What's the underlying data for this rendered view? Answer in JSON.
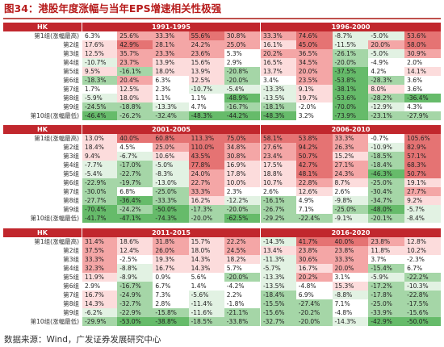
{
  "title": "图34：港股年度涨幅与当年EPS增速相关性极强",
  "source": "数据来源：Wind，广发证券发展研究中心",
  "colors": {
    "header_red": "#c1272d",
    "title_red": "#b71c1c",
    "pos_strong": "#e57373",
    "pos_mid": "#f4a6a6",
    "pos_light": "#fcdcdc",
    "neg_strong": "#66bb6a",
    "neg_mid": "#a5d6a7",
    "neg_light": "#e2f2e3",
    "neutral": "#ffffff"
  },
  "panels": [
    {
      "label": "HK",
      "periods": [
        "1991-1995",
        "1996-2000"
      ],
      "rows": [
        {
          "group": "第1组(涨幅最高)",
          "values": [
            "6.3%",
            "25.6%",
            "33.3%",
            "55.6%",
            "30.8%",
            "33.3%",
            "74.6%",
            "-8.7%",
            "-5.0%",
            "53.6%"
          ]
        },
        {
          "group": "第2组",
          "values": [
            "17.6%",
            "42.9%",
            "28.1%",
            "24.2%",
            "25.0%",
            "16.1%",
            "45.0%",
            "-11.5%",
            "20.0%",
            "58.0%"
          ]
        },
        {
          "group": "第3组",
          "values": [
            "12.5%",
            "35.7%",
            "23.3%",
            "23.6%",
            "5.3%",
            "20.2%",
            "36.5%",
            "-26.1%",
            "-5.0%",
            "30.9%"
          ]
        },
        {
          "group": "第4组",
          "values": [
            "-10.7%",
            "23.7%",
            "13.9%",
            "15.6%",
            "2.9%",
            "16.5%",
            "34.5%",
            "-20.0%",
            "-4.9%",
            "2.0%"
          ]
        },
        {
          "group": "第5组",
          "values": [
            "9.5%",
            "-16.1%",
            "18.0%",
            "13.9%",
            "-20.8%",
            "13.7%",
            "20.0%",
            "-37.5%",
            "4.2%",
            "14.1%"
          ]
        },
        {
          "group": "第6组",
          "values": [
            "-18.3%",
            "20.4%",
            "6.3%",
            "12.5%",
            "-20.0%",
            "3.4%",
            "23.5%",
            "-53.8%",
            "-28.3%",
            "3.6%"
          ]
        },
        {
          "group": "第7组",
          "values": [
            "1.7%",
            "12.5%",
            "2.3%",
            "-10.7%",
            "-5.4%",
            "-13.3%",
            "9.1%",
            "-38.1%",
            "8.0%",
            "3.6%"
          ]
        },
        {
          "group": "第8组",
          "values": [
            "-5.9%",
            "18.0%",
            "1.1%",
            "1.1%",
            "-48.9%",
            "-13.5%",
            "19.7%",
            "-53.6%",
            "-28.2%",
            "-36.4%"
          ]
        },
        {
          "group": "第9组",
          "values": [
            "-24.5%",
            "-18.8%",
            "-13.3%",
            "4.7%",
            "-16.7%",
            "-18.1%",
            "-2.0%",
            "-70.0%",
            "-12.9%",
            "4.3%"
          ]
        },
        {
          "group": "第10组(涨幅最低)",
          "values": [
            "-46.4%",
            "-26.2%",
            "-32.4%",
            "-48.3%",
            "-44.2%",
            "-48.3%",
            "3.2%",
            "-73.9%",
            "-23.1%",
            "-27.9%"
          ]
        }
      ]
    },
    {
      "label": "HK",
      "periods": [
        "2001-2005",
        "2006-2010"
      ],
      "rows": [
        {
          "group": "第1组(涨幅最高)",
          "values": [
            "13.0%",
            "40.0%",
            "60.8%",
            "113.3%",
            "75.0%",
            "58.1%",
            "53.8%",
            "33.3%",
            "-0.7%",
            "105.6%"
          ]
        },
        {
          "group": "第2组",
          "values": [
            "18.4%",
            "4.5%",
            "25.0%",
            "110.0%",
            "34.8%",
            "27.6%",
            "94.2%",
            "26.3%",
            "-10.9%",
            "82.9%"
          ]
        },
        {
          "group": "第3组",
          "values": [
            "9.4%",
            "-6.7%",
            "10.6%",
            "43.5%",
            "30.8%",
            "23.4%",
            "50.7%",
            "15.2%",
            "-18.5%",
            "57.1%"
          ]
        },
        {
          "group": "第4组",
          "values": [
            "-7.7%",
            "-17.0%",
            "-5.0%",
            "77.8%",
            "16.9%",
            "17.5%",
            "42.7%",
            "27.1%",
            "-18.4%",
            "68.3%"
          ]
        },
        {
          "group": "第5组",
          "values": [
            "-5.4%",
            "-22.7%",
            "-8.3%",
            "24.0%",
            "17.8%",
            "18.8%",
            "48.1%",
            "24.3%",
            "-46.3%",
            "50.7%"
          ]
        },
        {
          "group": "第6组",
          "values": [
            "-22.9%",
            "-19.7%",
            "-13.0%",
            "22.7%",
            "10.0%",
            "10.7%",
            "22.8%",
            "8.7%",
            "-25.0%",
            "19.1%"
          ]
        },
        {
          "group": "第7组",
          "values": [
            "-30.0%",
            "6.8%",
            "-25.0%",
            "33.3%",
            "2.3%",
            "2.6%",
            "12.6%",
            "2.6%",
            "-30.4%",
            "27.7%"
          ]
        },
        {
          "group": "第8组",
          "values": [
            "-27.7%",
            "-36.4%",
            "-33.3%",
            "16.2%",
            "-12.2%",
            "-16.1%",
            "4.9%",
            "-9.8%",
            "-34.7%",
            "9.2%"
          ]
        },
        {
          "group": "第9组",
          "values": [
            "-70.4%",
            "-24.2%",
            "-50.0%",
            "-17.3%",
            "-20.0%",
            "-26.7%",
            "7.1%",
            "-25.0%",
            "-48.0%",
            "-5.7%"
          ]
        },
        {
          "group": "第10组(涨幅最低)",
          "values": [
            "-41.7%",
            "-47.1%",
            "-74.3%",
            "-20.0%",
            "-62.5%",
            "-29.2%",
            "-22.4%",
            "-9.1%",
            "-20.1%",
            "-8.4%"
          ]
        }
      ]
    },
    {
      "label": "HK",
      "periods": [
        "2011-2015",
        "2016-2020"
      ],
      "rows": [
        {
          "group": "第1组(涨幅最高)",
          "values": [
            "31.4%",
            "18.6%",
            "31.8%",
            "15.7%",
            "22.2%",
            "-14.3%",
            "41.7%",
            "40.0%",
            "23.8%",
            "12.8%"
          ]
        },
        {
          "group": "第2组",
          "values": [
            "37.5%",
            "12.4%",
            "26.0%",
            "18.0%",
            "24.5%",
            "13.4%",
            "23.8%",
            "23.8%",
            "11.8%",
            "10.2%"
          ]
        },
        {
          "group": "第3组",
          "values": [
            "33.3%",
            "-2.5%",
            "19.3%",
            "14.3%",
            "18.2%",
            "-11.3%",
            "30.6%",
            "33.3%",
            "3.7%",
            "-2.3%"
          ]
        },
        {
          "group": "第4组",
          "values": [
            "32.3%",
            "-8.8%",
            "16.7%",
            "14.3%",
            "5.7%",
            "-5.7%",
            "16.7%",
            "20.0%",
            "-15.4%",
            "6.7%"
          ]
        },
        {
          "group": "第5组",
          "values": [
            "11.9%",
            "-8.9%",
            "0.9%",
            "5.6%",
            "-20.0%",
            "-13.3%",
            "20.2%",
            "3.1%",
            "-5.9%",
            "-22.2%"
          ]
        },
        {
          "group": "第6组",
          "values": [
            "2.9%",
            "-16.7%",
            "6.7%",
            "1.4%",
            "-4.2%",
            "-13.5%",
            "-4.8%",
            "15.3%",
            "-17.2%",
            "-10.3%"
          ]
        },
        {
          "group": "第7组",
          "values": [
            "16.7%",
            "-24.9%",
            "7.3%",
            "-5.6%",
            "2.2%",
            "-18.4%",
            "6.9%",
            "-8.8%",
            "-17.8%",
            "-22.8%"
          ]
        },
        {
          "group": "第8组",
          "values": [
            "14.3%",
            "-32.7%",
            "2.8%",
            "-11.4%",
            "-1.8%",
            "-15.5%",
            "-27.4%",
            "7.1%",
            "-25.0%",
            "-17.5%"
          ]
        },
        {
          "group": "第9组",
          "values": [
            "-6.2%",
            "-22.9%",
            "-15.8%",
            "-11.6%",
            "-21.1%",
            "-15.6%",
            "-20.2%",
            "-4.8%",
            "-33.9%",
            "-15.6%"
          ]
        },
        {
          "group": "第10组(涨幅最低)",
          "values": [
            "-29.9%",
            "-53.0%",
            "-38.8%",
            "-18.5%",
            "-33.8%",
            "-32.7%",
            "-20.0%",
            "-14.3%",
            "-42.9%",
            "-50.0%"
          ]
        }
      ]
    }
  ]
}
